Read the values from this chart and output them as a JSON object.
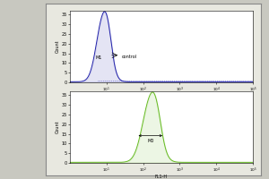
{
  "top_hist": {
    "color": "#2222aa",
    "peak_log": 0.9,
    "peak_y": 32,
    "log_sigma": 0.18,
    "baseline": 0.3,
    "label": "M1",
    "annotation": "control",
    "ylim": [
      0,
      37
    ],
    "yticks": [
      0,
      5,
      10,
      15,
      20,
      25,
      30,
      35
    ],
    "ylabel": "Count",
    "xlabel": "FL1-H"
  },
  "bot_hist": {
    "color": "#66bb22",
    "peak_log": 2.2,
    "peak_y": 32,
    "log_sigma": 0.22,
    "baseline": 0.3,
    "label": "M0",
    "ylim": [
      0,
      37
    ],
    "yticks": [
      0,
      5,
      10,
      15,
      20,
      25,
      30,
      35
    ],
    "ylabel": "Count",
    "xlabel": "FL1-H"
  },
  "xmin": 1,
  "xmax": 100000,
  "outer_bg": "#c8c8c0",
  "frame_bg": "#e8e8e0",
  "plot_bg": "#ffffff"
}
